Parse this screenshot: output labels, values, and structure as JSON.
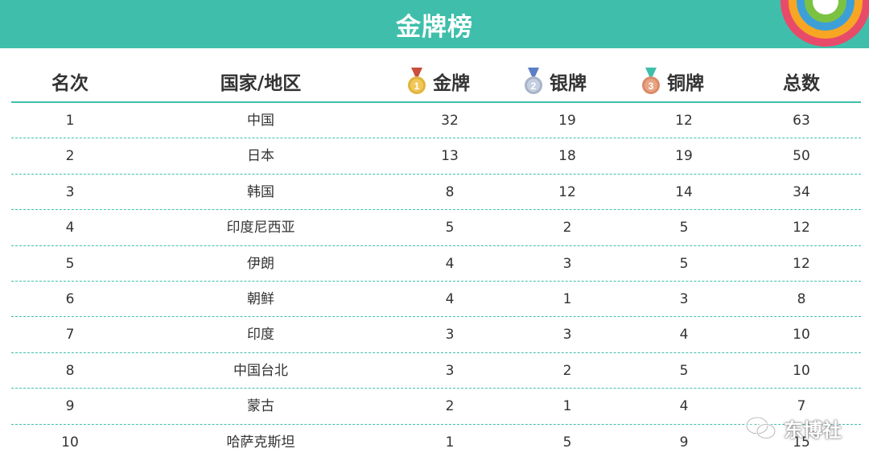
{
  "banner": {
    "title": "金牌榜"
  },
  "colors": {
    "accent": "#3fbfab",
    "gold": "#e2b33c",
    "silver": "#a8b3c9",
    "bronze": "#d98b68"
  },
  "columns": {
    "rank": "名次",
    "country": "国家/地区",
    "gold": "金牌",
    "silver": "银牌",
    "bronze": "铜牌",
    "total": "总数"
  },
  "medal_icons": {
    "gold": {
      "icon": "gold-medal-icon",
      "number": "1"
    },
    "silver": {
      "icon": "silver-medal-icon",
      "number": "2"
    },
    "bronze": {
      "icon": "bronze-medal-icon",
      "number": "3"
    }
  },
  "rows": [
    {
      "rank": "1",
      "country": "中国",
      "gold": "32",
      "silver": "19",
      "bronze": "12",
      "total": "63"
    },
    {
      "rank": "2",
      "country": "日本",
      "gold": "13",
      "silver": "18",
      "bronze": "19",
      "total": "50"
    },
    {
      "rank": "3",
      "country": "韩国",
      "gold": "8",
      "silver": "12",
      "bronze": "14",
      "total": "34"
    },
    {
      "rank": "4",
      "country": "印度尼西亚",
      "gold": "5",
      "silver": "2",
      "bronze": "5",
      "total": "12"
    },
    {
      "rank": "5",
      "country": "伊朗",
      "gold": "4",
      "silver": "3",
      "bronze": "5",
      "total": "12"
    },
    {
      "rank": "6",
      "country": "朝鲜",
      "gold": "4",
      "silver": "1",
      "bronze": "3",
      "total": "8"
    },
    {
      "rank": "7",
      "country": "印度",
      "gold": "3",
      "silver": "3",
      "bronze": "4",
      "total": "10"
    },
    {
      "rank": "8",
      "country": "中国台北",
      "gold": "3",
      "silver": "2",
      "bronze": "5",
      "total": "10"
    },
    {
      "rank": "9",
      "country": "蒙古",
      "gold": "2",
      "silver": "1",
      "bronze": "4",
      "total": "7"
    },
    {
      "rank": "10",
      "country": "哈萨克斯坦",
      "gold": "1",
      "silver": "5",
      "bronze": "9",
      "total": "15"
    }
  ],
  "watermark": {
    "text": "东博社",
    "icon": "wechat-icon"
  }
}
